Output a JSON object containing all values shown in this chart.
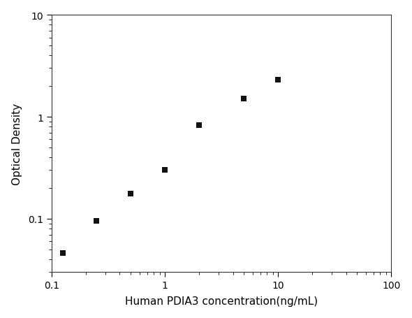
{
  "x_data": [
    0.125,
    0.25,
    0.5,
    1.0,
    2.0,
    5.0,
    10.0
  ],
  "y_data": [
    0.046,
    0.095,
    0.175,
    0.3,
    0.83,
    1.5,
    2.3
  ],
  "xlabel": "Human PDIA3 concentration(ng/mL)",
  "ylabel": "Optical Density",
  "xlim": [
    0.1,
    100
  ],
  "ylim": [
    0.03,
    10
  ],
  "marker_color": "#111111",
  "line_color": "#555555",
  "marker_size": 5.5,
  "xlabel_fontsize": 11,
  "ylabel_fontsize": 11,
  "tick_fontsize": 10,
  "background_color": "#ffffff",
  "figure_width": 5.9,
  "figure_height": 4.56,
  "dpi": 100
}
